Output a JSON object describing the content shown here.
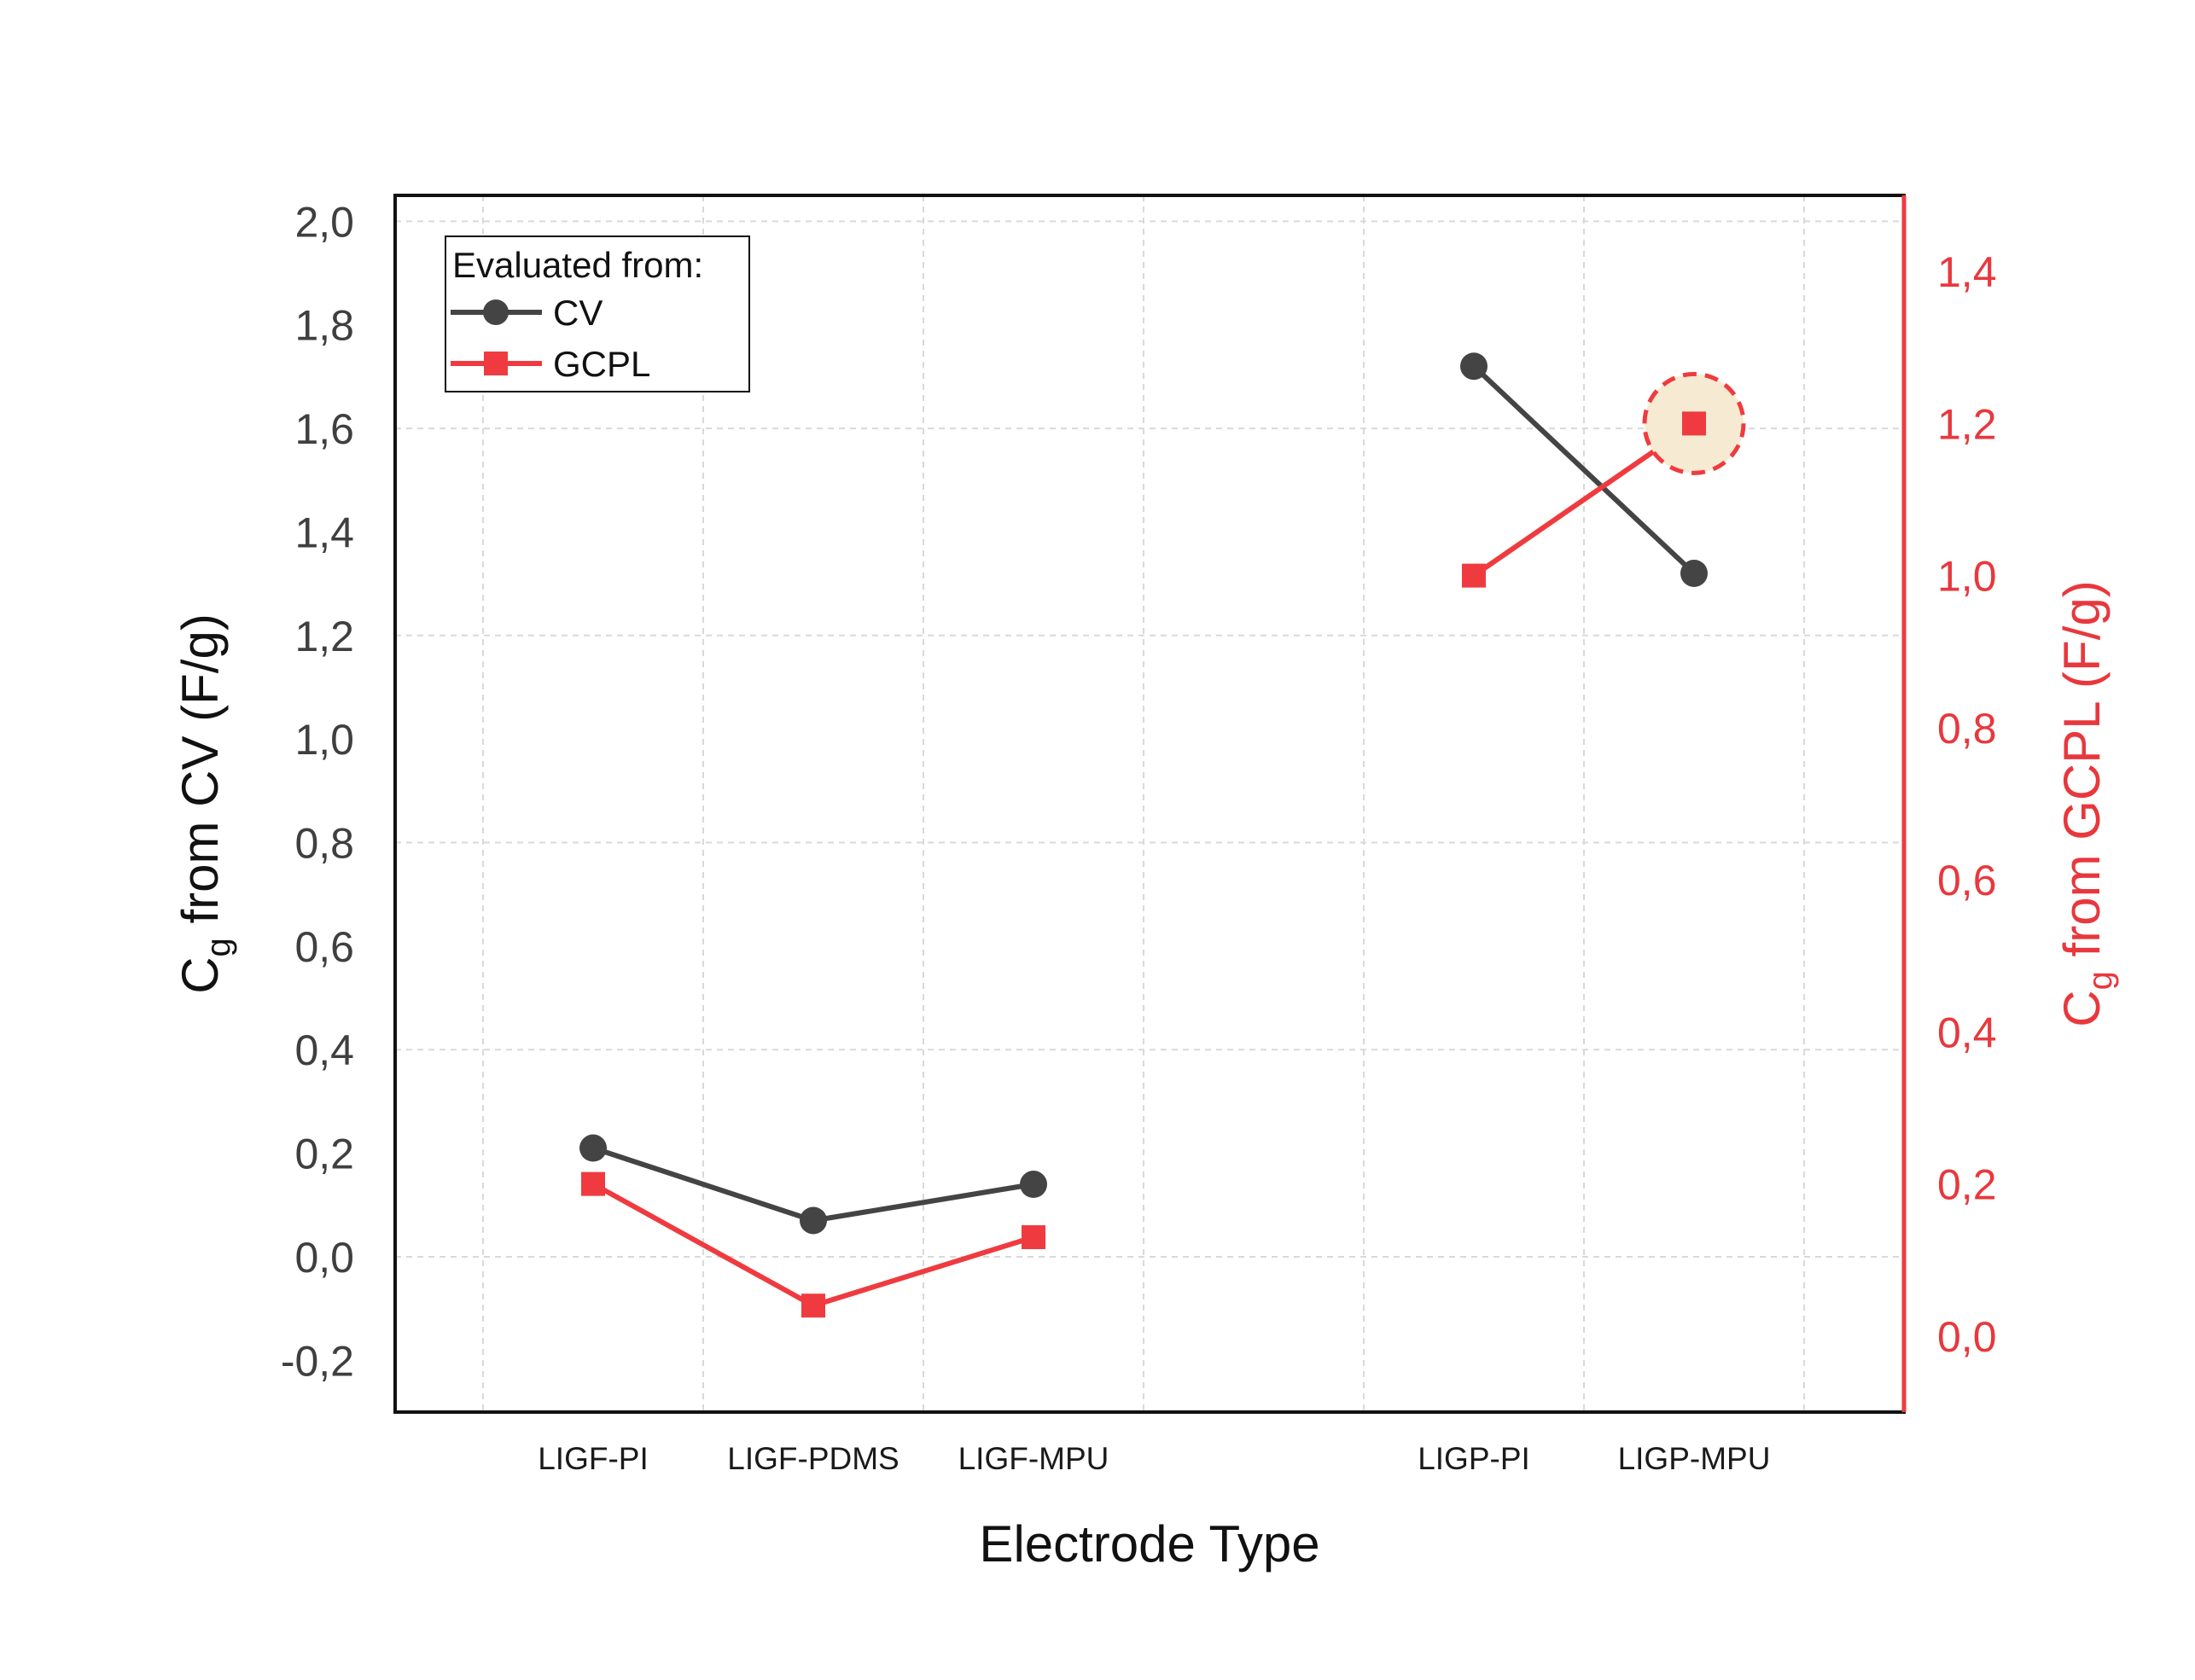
{
  "colors": {
    "cv": "#444444",
    "gcpl": "#ef3b3f",
    "highlight_fill": "#f7ead2",
    "grid": "#d9d9d9"
  },
  "legend": {
    "title": "Evaluated from:",
    "placement": "top-left"
  },
  "chart_data": {
    "type": "line",
    "title": "",
    "xlabel": "Electrode Type",
    "categories": [
      "LIGF-PI",
      "LIGF-PDMS",
      "LIGF-MPU",
      "",
      "LIGP-PI",
      "LIGP-MPU"
    ],
    "x_ticks": [
      "LIGF-PI",
      "LIGF-PDMS",
      "LIGF-MPU",
      "LIGP-PI",
      "LIGP-MPU"
    ],
    "grid": true,
    "left_axis": {
      "label_main": "C",
      "label_sub": "g",
      "label_rest": " from CV (F/g)",
      "ylim": [
        -0.3,
        2.05
      ],
      "ticks": [
        "-0,2",
        "0,0",
        "0,2",
        "0,4",
        "0,6",
        "0,8",
        "1,0",
        "1,2",
        "1,4",
        "1,6",
        "1,8",
        "2,0"
      ],
      "tick_values": [
        -0.2,
        0.0,
        0.2,
        0.4,
        0.6,
        0.8,
        1.0,
        1.2,
        1.4,
        1.6,
        1.8,
        2.0
      ]
    },
    "right_axis": {
      "label_main": "C",
      "label_sub": "g",
      "label_rest": " from GCPL (F/g)",
      "ylim": [
        -0.1,
        1.5
      ],
      "ticks": [
        "0,0",
        "0,2",
        "0,4",
        "0,6",
        "0,8",
        "1,0",
        "1,2",
        "1,4"
      ],
      "tick_values": [
        0.0,
        0.2,
        0.4,
        0.6,
        0.8,
        1.0,
        1.2,
        1.4
      ]
    },
    "series": [
      {
        "name": "CV",
        "axis": "left",
        "marker": "circle",
        "groups": [
          {
            "categories": [
              "LIGF-PI",
              "LIGF-PDMS",
              "LIGF-MPU"
            ],
            "values": [
              0.21,
              0.07,
              0.14
            ]
          },
          {
            "categories": [
              "LIGP-PI",
              "LIGP-MPU"
            ],
            "values": [
              1.72,
              1.32
            ]
          }
        ]
      },
      {
        "name": "GCPL",
        "axis": "right",
        "marker": "square",
        "groups": [
          {
            "categories": [
              "LIGF-PI",
              "LIGF-PDMS",
              "LIGF-MPU"
            ],
            "values": [
              0.2,
              0.04,
              0.13
            ]
          },
          {
            "categories": [
              "LIGP-PI",
              "LIGP-MPU"
            ],
            "values": [
              1.0,
              1.2
            ]
          }
        ]
      }
    ],
    "highlight": {
      "series": "GCPL",
      "category": "LIGP-MPU",
      "value": 1.2
    }
  }
}
